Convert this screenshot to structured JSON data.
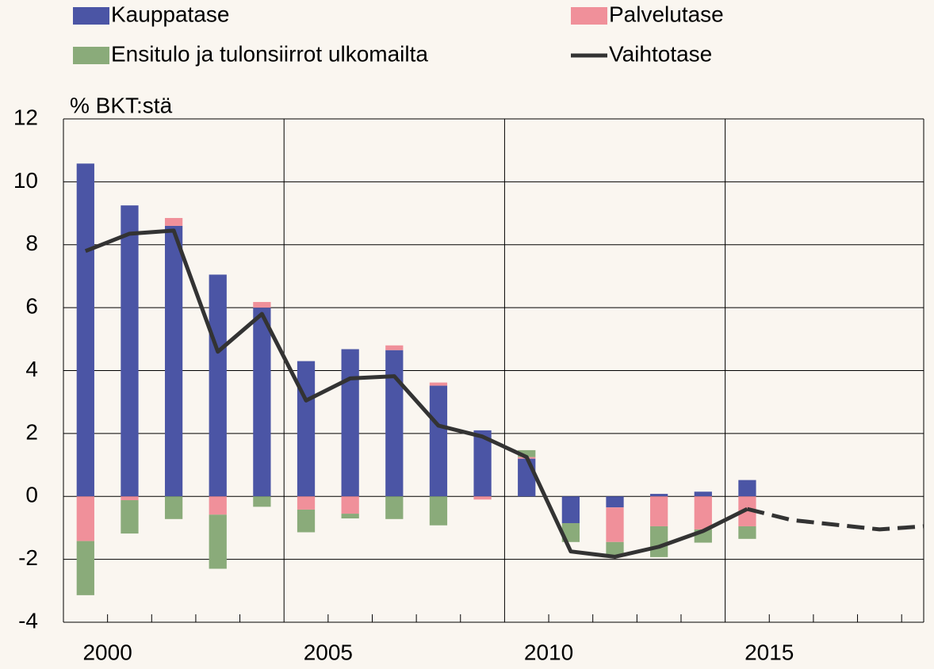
{
  "chart_data": {
    "type": "bar",
    "y_label": "% BKT:stä",
    "categories": [
      null,
      "2000",
      null,
      null,
      null,
      null,
      "2005",
      null,
      null,
      null,
      null,
      "2010",
      null,
      null,
      null,
      null,
      "2015",
      null,
      null,
      null
    ],
    "ylim": [
      -4,
      12
    ],
    "yticks": [
      -4,
      -2,
      0,
      2,
      4,
      6,
      8,
      10,
      12
    ],
    "grid": true,
    "stacked": true,
    "series": [
      {
        "name": "Kauppatase",
        "color": "#4b55a5",
        "values": [
          10.58,
          9.25,
          8.6,
          7.05,
          6.0,
          4.3,
          4.68,
          4.65,
          3.52,
          2.1,
          1.2,
          -0.85,
          -0.35,
          0.08,
          0.15,
          0.52,
          null,
          null,
          null,
          null
        ]
      },
      {
        "name": "Palvelutase",
        "color": "#f0909a",
        "values": [
          -1.42,
          -0.12,
          0.25,
          -0.58,
          0.18,
          -0.42,
          -0.55,
          0.15,
          0.1,
          -0.1,
          0.05,
          0,
          -1.1,
          -0.95,
          -1.05,
          -0.95,
          null,
          null,
          null,
          null
        ]
      },
      {
        "name": "Ensitulo ja tulonsiirrot ulkomailta",
        "color": "#8aab7a",
        "values": [
          -1.72,
          -1.06,
          -0.72,
          -1.72,
          -0.33,
          -0.72,
          -0.15,
          -0.72,
          -0.92,
          0,
          0.22,
          -0.6,
          -0.45,
          -0.98,
          -0.42,
          -0.4,
          null,
          null,
          null,
          null
        ]
      },
      {
        "name": "Vaihtotase",
        "color": "#333333",
        "type": "line",
        "dashed_from_index": 15,
        "values": [
          7.8,
          8.35,
          8.45,
          4.6,
          5.8,
          3.05,
          3.75,
          3.82,
          2.25,
          1.9,
          1.25,
          -1.75,
          -1.92,
          -1.6,
          -1.1,
          -0.4,
          -0.75,
          -0.9,
          -1.05,
          -0.95
        ]
      }
    ]
  }
}
